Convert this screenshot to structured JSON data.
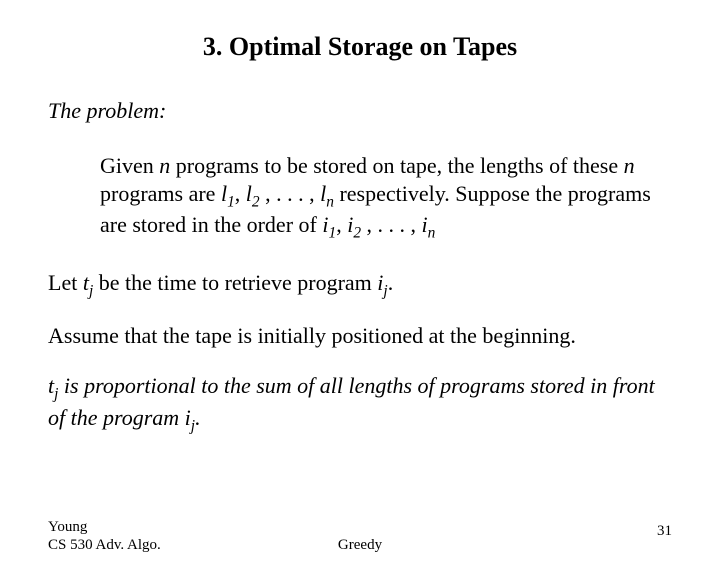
{
  "slide": {
    "title": "3.  Optimal Storage on Tapes",
    "problem_label": "The problem:",
    "given_html": "Given <span class='it'>n</span> programs to be stored on tape, the lengths of these <span class='it'>n</span> programs are  <span class='it'>l</span><sub>1</sub>, <span class='it'>l</span><sub>2</sub> , . . .  , <span class='it'>l</span><sub>n</sub> respectively. Suppose the programs are stored in the order of  <span class='it'>i</span><sub>1</sub>, <span class='it'>i</span><sub>2</sub> , . . .  , <span class='it'>i</span><sub>n</sub>",
    "let_html": "Let  <span class='it'>t</span><sub>j</sub> be the time to retrieve program <span class='it'>i</span><sub>j</sub>.",
    "assume_text": "Assume that the tape is initially positioned at the beginning.",
    "conclusion_html": "t<sub>j</sub> is proportional to the sum of all lengths of programs stored in front of the program i<sub>j</sub>.",
    "footer": {
      "author": "Young",
      "course": "CS 530 Adv.  Algo.",
      "center": "Greedy",
      "page": "31"
    },
    "colors": {
      "background": "#ffffff",
      "text": "#000000"
    },
    "typography": {
      "font_family": "Times New Roman",
      "title_size_pt": 20,
      "body_size_pt": 16,
      "footer_size_pt": 11
    }
  }
}
